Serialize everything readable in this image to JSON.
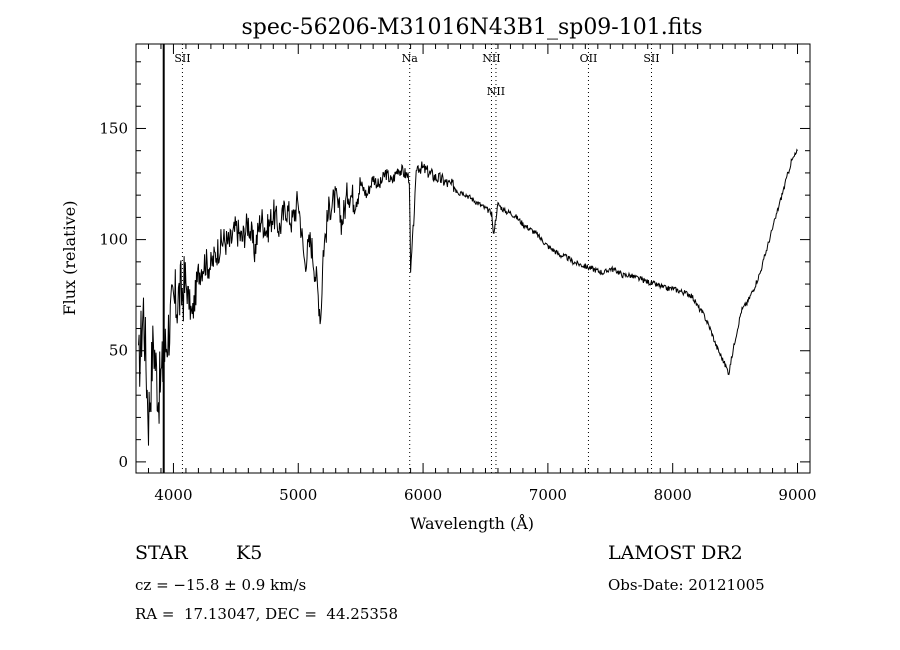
{
  "chart_data": {
    "type": "line",
    "title": "spec-56206-M31016N43B1_sp09-101.fits",
    "xlabel": "Wavelength (Å)",
    "ylabel": "Flux (relative)",
    "xlim": [
      3700,
      9100
    ],
    "ylim": [
      -5,
      188
    ],
    "x_ticks": [
      4000,
      5000,
      6000,
      7000,
      8000,
      9000
    ],
    "y_ticks": [
      0,
      50,
      100,
      150
    ],
    "grid": false,
    "series": [
      {
        "x": [
          3720,
          3760,
          3800,
          3840,
          3880,
          3920,
          3960,
          4000,
          4050,
          4100,
          4150,
          4200,
          4250,
          4300,
          4350,
          4400,
          4450,
          4500,
          4550,
          4600,
          4650,
          4700,
          4750,
          4800,
          4850,
          4900,
          4950,
          5000,
          5050,
          5100,
          5150,
          5180,
          5200,
          5250,
          5300,
          5350,
          5400,
          5450,
          5500,
          5550,
          5600,
          5650,
          5700,
          5750,
          5800,
          5850,
          5890,
          5900,
          5950,
          6000,
          6050,
          6100,
          6150,
          6200,
          6250,
          6300,
          6350,
          6400,
          6450,
          6500,
          6550,
          6563,
          6600,
          6650,
          6700,
          6750,
          6800,
          6850,
          6900,
          6950,
          7000,
          7050,
          7100,
          7150,
          7200,
          7250,
          7300,
          7350,
          7400,
          7450,
          7500,
          7550,
          7600,
          7650,
          7700,
          7750,
          7800,
          7850,
          7900,
          7950,
          8000,
          8050,
          8100,
          8150,
          8200,
          8250,
          8300,
          8350,
          8400,
          8450,
          8500,
          8550,
          8600,
          8650,
          8700,
          8750,
          8800,
          8850,
          8900,
          8950,
          9000
        ],
        "y": [
          40,
          70,
          20,
          55,
          30,
          45,
          60,
          70,
          75,
          80,
          65,
          85,
          90,
          88,
          95,
          100,
          98,
          105,
          100,
          108,
          95,
          110,
          104,
          112,
          105,
          115,
          108,
          118,
          90,
          100,
          80,
          65,
          95,
          115,
          118,
          108,
          122,
          118,
          125,
          120,
          128,
          124,
          130,
          126,
          132,
          130,
          128,
          84,
          133,
          132,
          130,
          128,
          127,
          125,
          124,
          122,
          120,
          118,
          116,
          114,
          112,
          102,
          116,
          113,
          112,
          110,
          107,
          105,
          103,
          100,
          97,
          95,
          93,
          92,
          90,
          89,
          88,
          87,
          86,
          85,
          87,
          86,
          84,
          84,
          83,
          82,
          81,
          80,
          79,
          78,
          78,
          77,
          76,
          75,
          70,
          66,
          60,
          52,
          46,
          40,
          55,
          68,
          72,
          78,
          85,
          95,
          105,
          115,
          125,
          135,
          140
        ]
      }
    ],
    "annotations": [
      {
        "label": "SII",
        "x": 4072
      },
      {
        "label": "Na",
        "x": 5893
      },
      {
        "label": "NII",
        "x": 6548
      },
      {
        "label": "NII",
        "x": 6584
      },
      {
        "label": "OII",
        "x": 7325
      },
      {
        "label": "SII",
        "x": 7830
      }
    ]
  },
  "info": {
    "object_type": "STAR",
    "subclass": "K5",
    "survey": "LAMOST DR2",
    "cz": "cz = −15.8 ± 0.9 km/s",
    "obs_date": "Obs-Date: 20121005",
    "coords": "RA =  17.13047, DEC =  44.25358"
  }
}
